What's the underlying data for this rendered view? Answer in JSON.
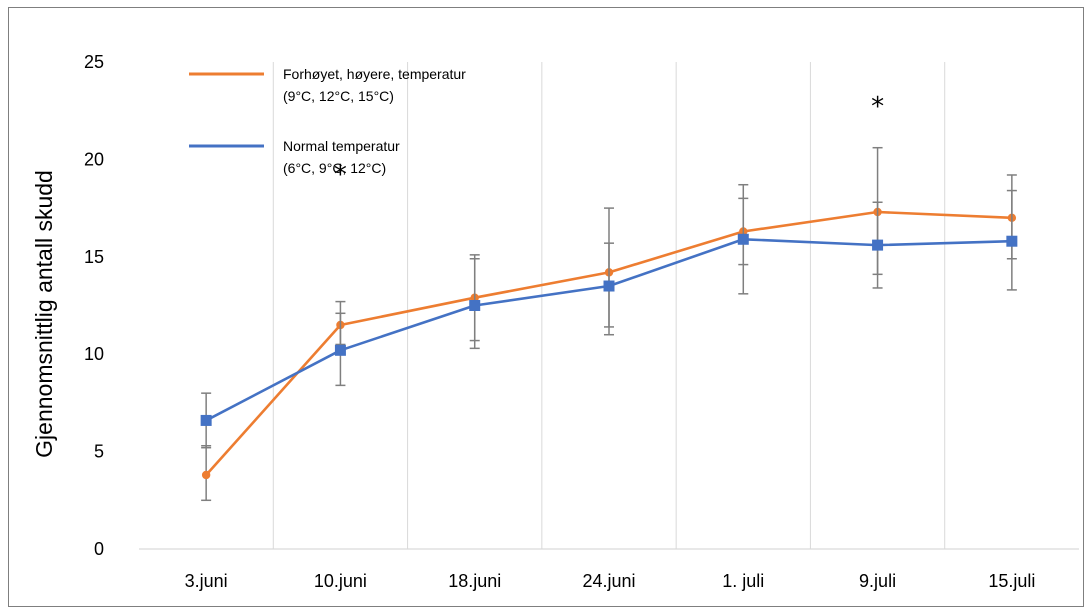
{
  "chart_data": {
    "type": "line",
    "title": "",
    "xlabel": "",
    "ylabel": "Gjennomsnittlig antall skudd",
    "ylim": [
      0,
      25
    ],
    "yticks": [
      0,
      5,
      10,
      15,
      20,
      25
    ],
    "categories": [
      "3.juni",
      "10.juni",
      "18.juni",
      "24.juni",
      "1. juli",
      "9.juli",
      "15.juli"
    ],
    "grid": "vertical",
    "legend": "top-left",
    "series": [
      {
        "name": "Forhøyet, høyere, temperatur",
        "legend_lines": [
          "Forhøyet, høyere, temperatur",
          "(9°C, 12°C, 15°C)"
        ],
        "color": "#ED7D31",
        "marker": "circle",
        "values": [
          3.8,
          11.5,
          12.9,
          14.2,
          16.3,
          17.3,
          17.0
        ],
        "err_low": [
          2.5,
          10.5,
          10.3,
          11.0,
          13.1,
          13.4,
          13.3
        ],
        "err_high": [
          5.3,
          12.7,
          15.1,
          17.5,
          18.7,
          20.6,
          19.2
        ]
      },
      {
        "name": "Normal temperatur",
        "legend_lines": [
          "Normal temperatur",
          "(6°C, 9°C, 12°C)"
        ],
        "color": "#4472C4",
        "marker": "square",
        "values": [
          6.6,
          10.2,
          12.5,
          13.5,
          15.9,
          15.6,
          15.8
        ],
        "err_low": [
          5.2,
          8.4,
          10.7,
          11.4,
          14.6,
          14.1,
          14.9
        ],
        "err_high": [
          8.0,
          12.1,
          14.9,
          15.7,
          18.0,
          17.8,
          18.4
        ]
      }
    ],
    "annotations": [
      {
        "text": "*",
        "category": "10.juni",
        "y": 19.5
      },
      {
        "text": "*",
        "category": "9.juli",
        "y": 23.0
      }
    ]
  }
}
